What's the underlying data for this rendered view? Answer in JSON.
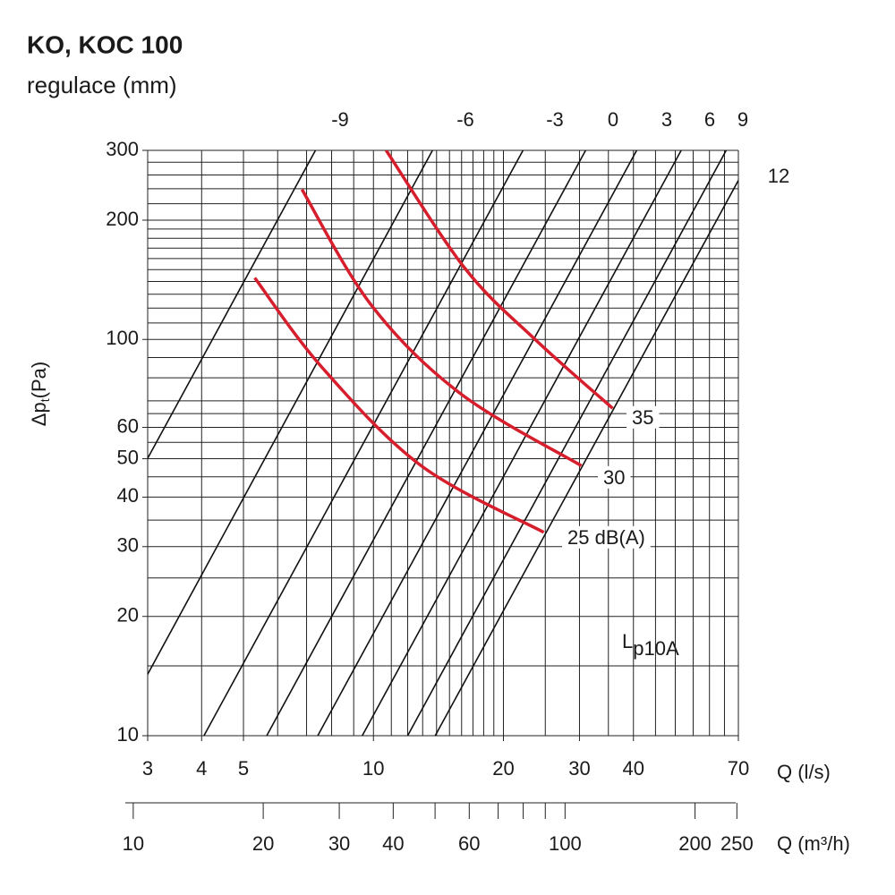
{
  "chart_data": {
    "type": "loglog-lines",
    "title": "KO, KOC 100",
    "subtitle": "regulace (mm)",
    "y_label": {
      "main": "Δp",
      "sub": "t",
      "unit": "(Pa)"
    },
    "x_label": "Q (l/s)",
    "x2_label": "Q (m³/h)",
    "annotation": {
      "main": "L",
      "sub": "p10A"
    },
    "log_scale": true,
    "xlim": [
      3,
      70
    ],
    "ylim": [
      10,
      300
    ],
    "x2lim": [
      10.8,
      252
    ],
    "xticks": [
      3,
      4,
      5,
      10,
      20,
      30,
      40,
      70
    ],
    "yticks": [
      10,
      20,
      30,
      40,
      50,
      60,
      100,
      200,
      300
    ],
    "x2ticks": [
      10,
      20,
      30,
      40,
      60,
      100,
      200,
      250
    ],
    "x2minor": [
      50,
      70,
      80,
      90
    ],
    "xgrid": [
      3,
      4,
      5,
      6,
      7,
      8,
      9,
      10,
      11,
      12,
      13,
      14,
      15,
      16,
      17,
      18,
      19,
      20,
      25,
      30,
      35,
      40,
      45,
      50,
      55,
      60,
      65,
      70
    ],
    "ygrid": [
      10,
      15,
      20,
      25,
      30,
      35,
      40,
      45,
      50,
      55,
      60,
      65,
      70,
      80,
      90,
      100,
      110,
      120,
      130,
      140,
      150,
      160,
      170,
      180,
      190,
      200,
      220,
      240,
      260,
      280,
      300
    ],
    "damper_lines": [
      {
        "name": "-9",
        "color": "#111111",
        "x": [
          1.34,
          7.34
        ],
        "values": [
          10,
          300
        ]
      },
      {
        "name": "-6",
        "color": "#111111",
        "x": [
          2.51,
          13.7
        ],
        "values": [
          10,
          300
        ]
      },
      {
        "name": "-3",
        "color": "#111111",
        "x": [
          4.05,
          22.2
        ],
        "values": [
          10,
          300
        ]
      },
      {
        "name": "0",
        "color": "#111111",
        "x": [
          5.66,
          31.0
        ],
        "values": [
          10,
          300
        ]
      },
      {
        "name": "3",
        "color": "#111111",
        "x": [
          7.43,
          40.7
        ],
        "values": [
          10,
          300
        ]
      },
      {
        "name": "6",
        "color": "#111111",
        "x": [
          9.42,
          51.6
        ],
        "values": [
          10,
          300
        ]
      },
      {
        "name": "9",
        "color": "#111111",
        "x": [
          12.0,
          65.6
        ],
        "values": [
          10,
          300
        ]
      },
      {
        "name": "12",
        "color": "#111111",
        "x": [
          13.9,
          76.4
        ],
        "values": [
          10,
          300
        ]
      }
    ],
    "noise_curves": [
      {
        "name": "35",
        "color": "#d61e2c",
        "x": [
          10.7,
          16.3,
          23.8,
          35.8
        ],
        "values": [
          300,
          151,
          99.5,
          67
        ]
      },
      {
        "name": "30",
        "color": "#d61e2c",
        "x": [
          6.83,
          9.89,
          15.9,
          30.3
        ],
        "values": [
          239,
          122,
          73,
          48
        ]
      },
      {
        "name": "25 dB(A)",
        "color": "#d61e2c",
        "x": [
          5.31,
          7.6,
          12.9,
          24.8
        ],
        "values": [
          143,
          85,
          48,
          32.6
        ]
      }
    ]
  }
}
